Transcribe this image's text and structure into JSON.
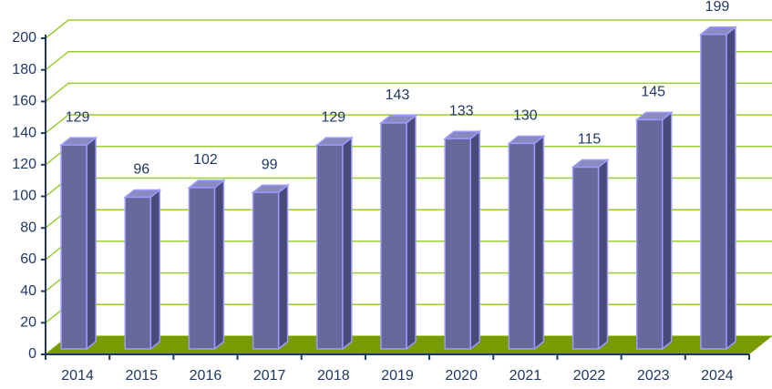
{
  "chart_data": {
    "type": "bar",
    "categories": [
      "2014",
      "2015",
      "2016",
      "2017",
      "2018",
      "2019",
      "2020",
      "2021",
      "2022",
      "2023",
      "2024"
    ],
    "values": [
      129,
      96,
      102,
      99,
      129,
      143,
      133,
      130,
      115,
      145,
      199
    ],
    "color": "#68689c",
    "ylim": [
      0,
      200
    ],
    "yticks": [
      0,
      20,
      40,
      60,
      80,
      100,
      120,
      140,
      160,
      180,
      200
    ],
    "grid": true
  }
}
